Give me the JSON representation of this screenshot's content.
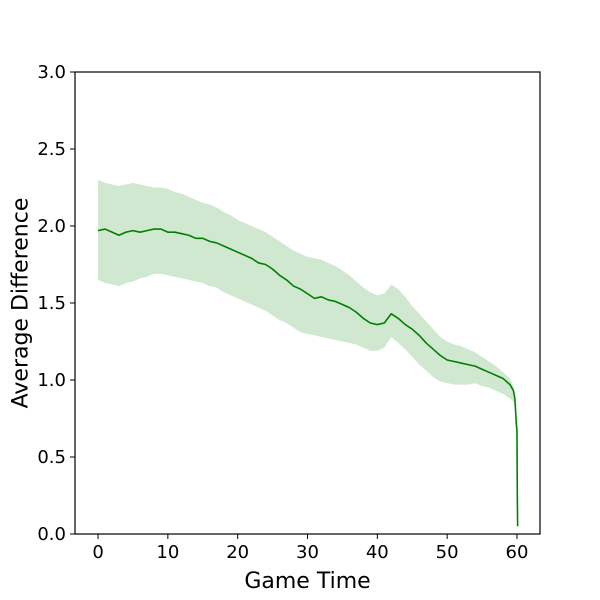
{
  "chart_data": {
    "type": "line",
    "title": "",
    "xlabel": "Game Time",
    "ylabel": "Average Difference",
    "xlim": [
      -3.3,
      63.3
    ],
    "ylim": [
      0.0,
      3.0
    ],
    "xticks": [
      0,
      10,
      20,
      30,
      40,
      50,
      60
    ],
    "yticks": [
      0.0,
      0.5,
      1.0,
      1.5,
      2.0,
      2.5,
      3.0
    ],
    "xtick_labels": [
      "0",
      "10",
      "20",
      "30",
      "40",
      "50",
      "60"
    ],
    "ytick_labels": [
      "0.0",
      "0.5",
      "1.0",
      "1.5",
      "2.0",
      "2.5",
      "3.0"
    ],
    "grid": false,
    "legend": "none",
    "colors": {
      "line": "#008000",
      "band": "#b5dcb5"
    },
    "series": [
      {
        "x": [
          0,
          1,
          2,
          3,
          4,
          5,
          6,
          7,
          8,
          9,
          10,
          11,
          12,
          13,
          14,
          15,
          16,
          17,
          18,
          19,
          20,
          21,
          22,
          23,
          24,
          25,
          26,
          27,
          28,
          29,
          30,
          31,
          32,
          33,
          34,
          35,
          36,
          37,
          38,
          39,
          40,
          41,
          42,
          43,
          44,
          45,
          46,
          47,
          48,
          49,
          50,
          51,
          52,
          53,
          54,
          55,
          56,
          57,
          58,
          59,
          59.5,
          59.7,
          59.9,
          60.0,
          60.05,
          60.1
        ],
        "y": [
          1.97,
          1.98,
          1.96,
          1.94,
          1.96,
          1.97,
          1.96,
          1.97,
          1.98,
          1.98,
          1.96,
          1.96,
          1.95,
          1.94,
          1.92,
          1.92,
          1.9,
          1.89,
          1.87,
          1.85,
          1.83,
          1.81,
          1.79,
          1.76,
          1.75,
          1.72,
          1.68,
          1.65,
          1.61,
          1.59,
          1.56,
          1.53,
          1.54,
          1.52,
          1.51,
          1.49,
          1.47,
          1.44,
          1.4,
          1.37,
          1.36,
          1.37,
          1.43,
          1.4,
          1.36,
          1.33,
          1.29,
          1.24,
          1.2,
          1.16,
          1.13,
          1.12,
          1.11,
          1.1,
          1.09,
          1.07,
          1.05,
          1.03,
          1.01,
          0.97,
          0.93,
          0.88,
          0.72,
          0.67,
          0.25,
          0.05
        ],
        "upper": [
          2.3,
          2.28,
          2.27,
          2.26,
          2.27,
          2.28,
          2.27,
          2.26,
          2.25,
          2.25,
          2.24,
          2.22,
          2.21,
          2.19,
          2.17,
          2.15,
          2.14,
          2.12,
          2.09,
          2.07,
          2.04,
          2.02,
          2.0,
          1.98,
          1.96,
          1.93,
          1.9,
          1.87,
          1.84,
          1.82,
          1.8,
          1.79,
          1.78,
          1.76,
          1.74,
          1.71,
          1.68,
          1.64,
          1.6,
          1.57,
          1.55,
          1.56,
          1.62,
          1.59,
          1.54,
          1.48,
          1.43,
          1.38,
          1.33,
          1.28,
          1.25,
          1.23,
          1.22,
          1.2,
          1.18,
          1.15,
          1.12,
          1.09,
          1.05,
          1.01,
          0.96,
          0.9,
          0.74,
          0.69,
          0.26,
          0.06
        ],
        "lower": [
          1.65,
          1.63,
          1.62,
          1.61,
          1.63,
          1.64,
          1.66,
          1.67,
          1.69,
          1.69,
          1.68,
          1.67,
          1.66,
          1.65,
          1.64,
          1.63,
          1.61,
          1.6,
          1.57,
          1.55,
          1.53,
          1.51,
          1.49,
          1.47,
          1.45,
          1.42,
          1.39,
          1.37,
          1.34,
          1.31,
          1.3,
          1.29,
          1.28,
          1.27,
          1.26,
          1.25,
          1.24,
          1.23,
          1.21,
          1.19,
          1.19,
          1.21,
          1.28,
          1.24,
          1.2,
          1.15,
          1.1,
          1.06,
          1.02,
          0.99,
          0.98,
          0.97,
          0.97,
          0.97,
          0.98,
          0.96,
          0.95,
          0.93,
          0.91,
          0.88,
          0.86,
          0.82,
          0.68,
          0.63,
          0.23,
          0.04
        ]
      }
    ]
  }
}
